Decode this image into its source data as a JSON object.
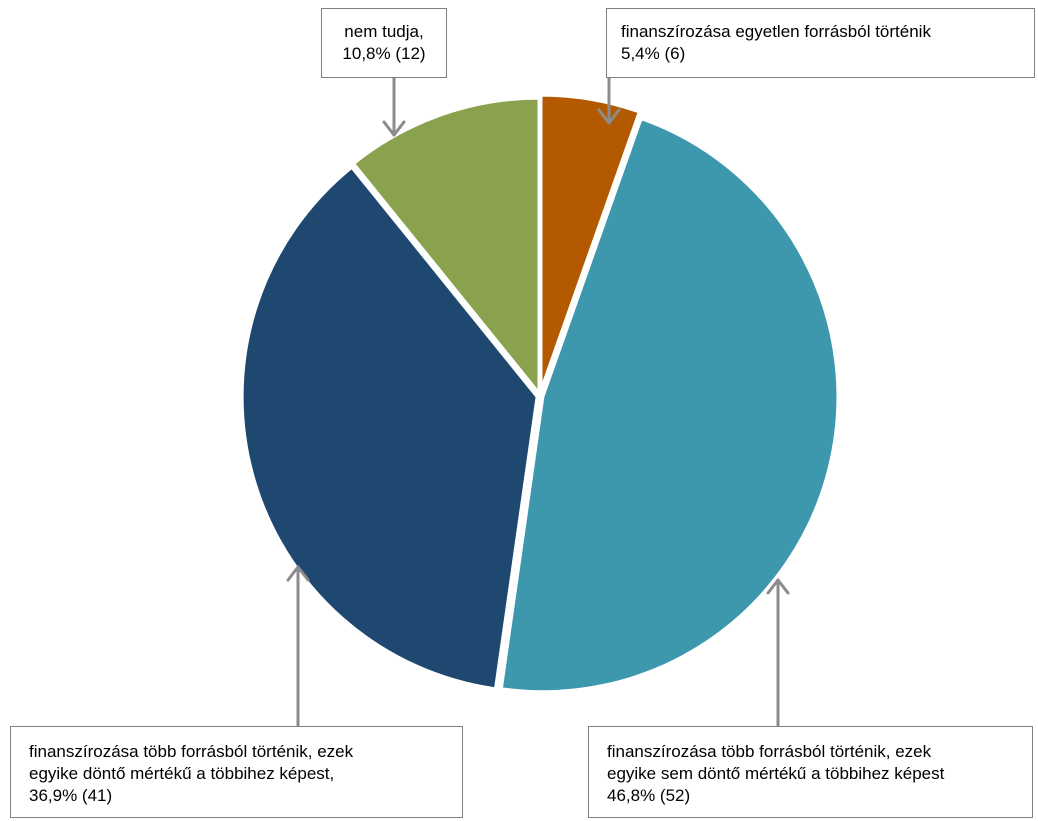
{
  "chart_data": {
    "type": "pie",
    "title": "",
    "slices": [
      {
        "label": "finanszírozása egyetlen forrásból történik",
        "percent": 5.4,
        "count": 6,
        "color": "#b35a00"
      },
      {
        "label": "finanszírozása több forrásból történik, ezek egyike sem döntő mértékű a többihez képest",
        "percent": 46.8,
        "count": 52,
        "color": "#3d97ad"
      },
      {
        "label": "finanszírozása több forrásból történik, ezek egyike döntő mértékű a többihez képest",
        "percent": 36.9,
        "count": 41,
        "color": "#1f4870"
      },
      {
        "label": "nem tudja",
        "percent": 10.8,
        "count": 12,
        "color": "#8aa24d"
      }
    ]
  },
  "callouts": {
    "nem_tudja": {
      "line1": "nem tudja,",
      "line2": "10,8% (12)"
    },
    "egyetlen": {
      "line1": "finanszírozása egyetlen forrásból történik",
      "line2": "5,4% (6)"
    },
    "tobb_dontő": {
      "line1": "finanszírozása több forrásból történik, ezek",
      "line2": "egyike döntő mértékű a többihez képest,",
      "line3": "36,9% (41)"
    },
    "tobb_sem": {
      "line1": "finanszírozása több forrásból történik, ezek",
      "line2": "egyike sem döntő mértékű a többihez képest",
      "line3": "46,8% (52)"
    }
  },
  "colors": {
    "arrow": "#8c8c8c",
    "callout_border": "#7f7f7f",
    "slice_gap": "#ffffff"
  }
}
